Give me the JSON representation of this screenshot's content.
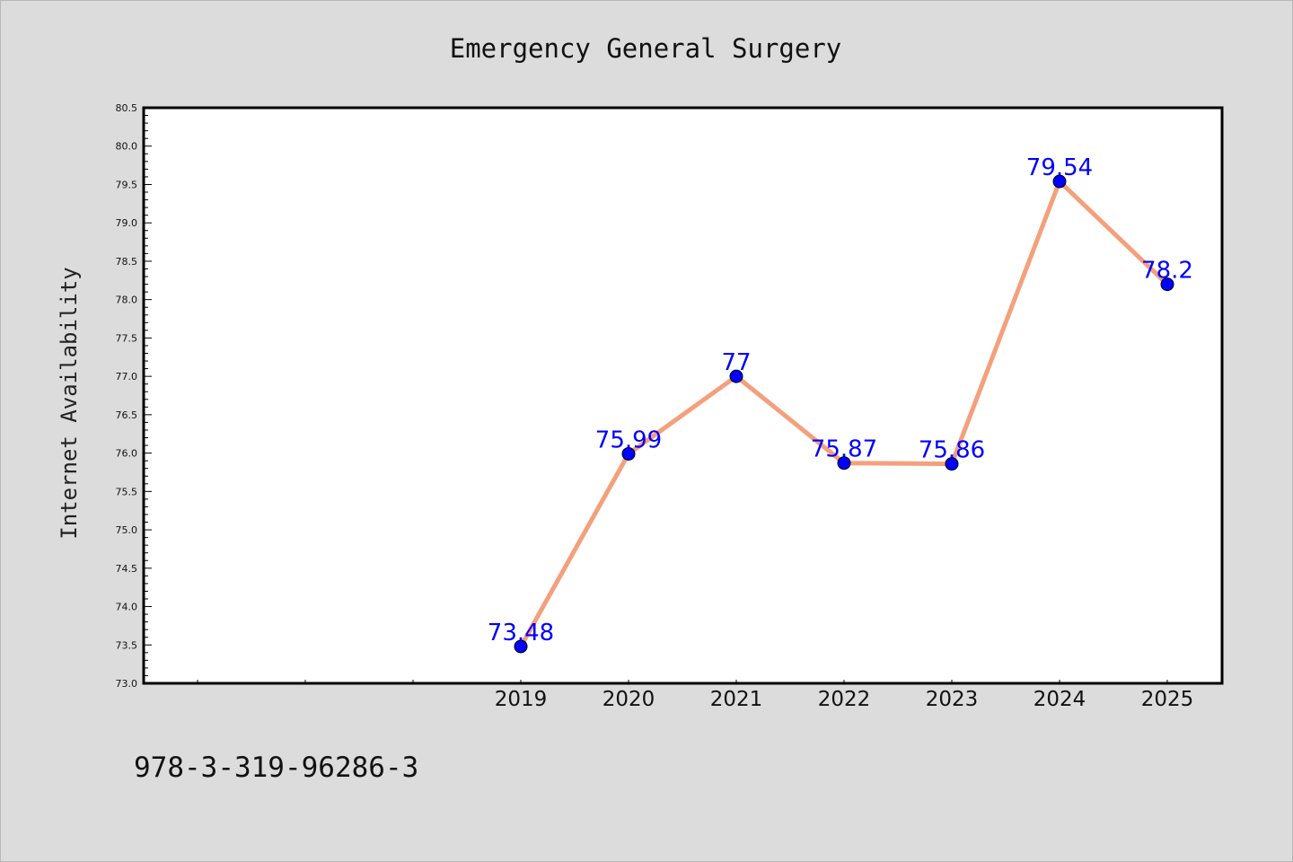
{
  "chart_data": {
    "type": "line",
    "title": "Emergency General Surgery",
    "xlabel": "",
    "ylabel": "Internet Availability",
    "categories": [
      "2019",
      "2020",
      "2021",
      "2022",
      "2023",
      "2024",
      "2025"
    ],
    "series": [
      {
        "values": [
          73.48,
          75.99,
          77,
          75.87,
          75.86,
          79.54,
          78.2
        ],
        "labels": [
          "73.48",
          "75.99",
          "77",
          "75.87",
          "75.86",
          "79.54",
          "78.2"
        ]
      }
    ],
    "ylim": [
      73.0,
      80.5
    ],
    "yticks": [
      "73.0",
      "73.5",
      "74.0",
      "74.5",
      "75.0",
      "75.5",
      "76.0",
      "76.5",
      "77.0",
      "77.5",
      "78.0",
      "78.5",
      "79.0",
      "79.5",
      "80.0",
      "80.5"
    ],
    "grid": false,
    "legend": "none",
    "colors": {
      "line": "#f4a07c",
      "marker": "#0000ff",
      "labels": "#0000ff",
      "background": "#dcdcdc",
      "plot_background": "#ffffff"
    }
  },
  "footer": {
    "code": "978-3-319-96286-3"
  }
}
